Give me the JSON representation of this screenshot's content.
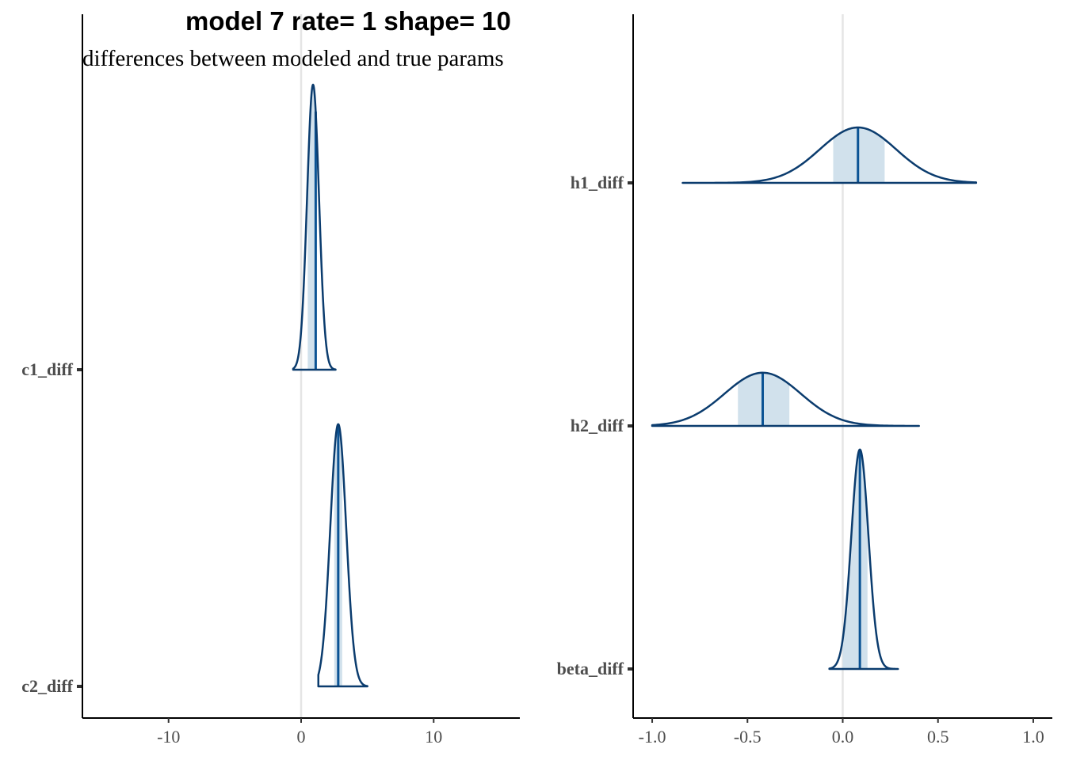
{
  "title": "model 7 rate= 1 shape= 10",
  "subtitle": "differences between modeled and true params",
  "colors": {
    "outline": "#0b3c6e",
    "fill": "#d1e1ec",
    "median": "#0b5394",
    "zero_line": "#e5e5e5",
    "axis": "#000000",
    "label": "#4d4d4d"
  },
  "chart_data": [
    {
      "type": "area",
      "subtype": "density-ridges",
      "xlim": [
        -16.5,
        16.5
      ],
      "xticks": [
        -10,
        0,
        10
      ],
      "xtick_labels": [
        "-10",
        "0",
        "10"
      ],
      "categories": [
        "c1_diff",
        "c2_diff"
      ],
      "reference_line": 0,
      "series": [
        {
          "name": "c1_diff",
          "median": 1.1,
          "interval": [
            0.5,
            1.1
          ],
          "range": [
            -0.6,
            2.6
          ],
          "sd": 0.45,
          "mode": 0.9
        },
        {
          "name": "c2_diff",
          "median": 2.8,
          "interval": [
            2.5,
            3.1
          ],
          "range": [
            1.3,
            5.0
          ],
          "sd": 0.6,
          "mode": 2.8
        }
      ]
    },
    {
      "type": "area",
      "subtype": "density-ridges",
      "xlim": [
        -1.1,
        1.1
      ],
      "xticks": [
        -1.0,
        -0.5,
        0.0,
        0.5,
        1.0
      ],
      "xtick_labels": [
        "-1.0",
        "-0.5",
        "0.0",
        "0.5",
        "1.0"
      ],
      "categories": [
        "h1_diff",
        "h2_diff",
        "beta_diff"
      ],
      "reference_line": 0,
      "series": [
        {
          "name": "h1_diff",
          "median": 0.08,
          "interval": [
            -0.05,
            0.22
          ],
          "range": [
            -0.84,
            0.7
          ],
          "sd": 0.2,
          "mode": 0.08
        },
        {
          "name": "h2_diff",
          "median": -0.42,
          "interval": [
            -0.55,
            -0.28
          ],
          "range": [
            -1.0,
            0.4
          ],
          "sd": 0.2,
          "mode": -0.42
        },
        {
          "name": "beta_diff",
          "median": 0.09,
          "interval": [
            0.0,
            0.13
          ],
          "range": [
            -0.07,
            0.29
          ],
          "sd": 0.045,
          "mode": 0.09
        }
      ]
    }
  ]
}
